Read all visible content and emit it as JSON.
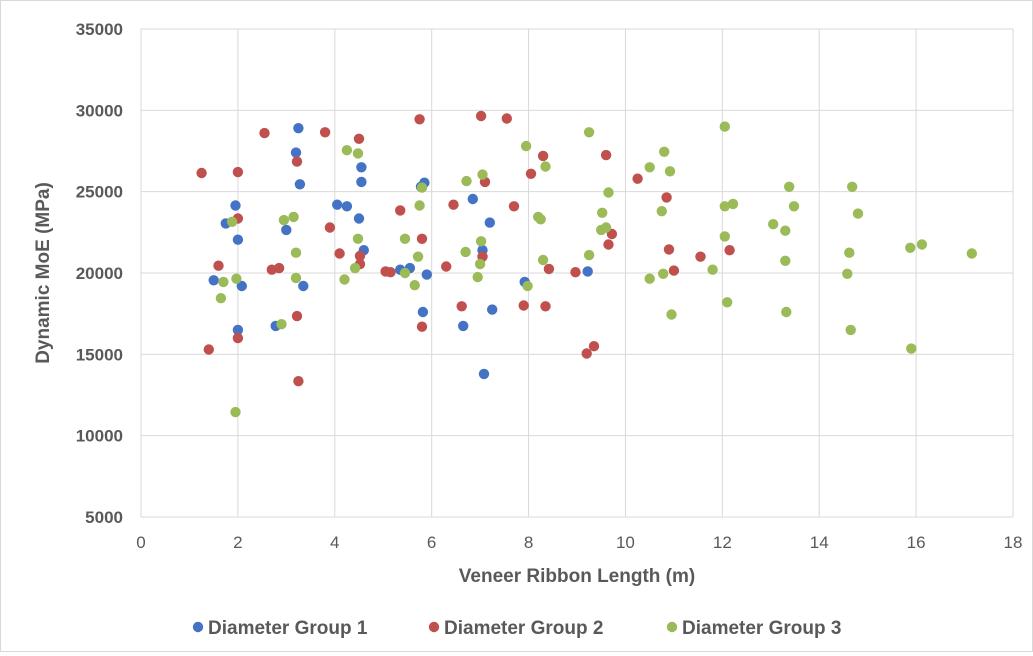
{
  "chart_data": {
    "type": "scatter",
    "title": "",
    "xlabel": "Veneer Ribbon Length (m)",
    "ylabel": "Dynamic MoE (MPa)",
    "xlim": [
      0,
      18
    ],
    "ylim": [
      5000,
      35000
    ],
    "x_ticks": [
      0,
      2,
      4,
      6,
      8,
      10,
      12,
      14,
      16,
      18
    ],
    "y_ticks": [
      5000,
      10000,
      15000,
      20000,
      25000,
      30000,
      35000
    ],
    "grid": true,
    "legend_position": "bottom",
    "series": [
      {
        "name": "Diameter Group 1",
        "color": "#4472c4",
        "points": [
          [
            3.25,
            28900
          ],
          [
            3.2,
            27400
          ],
          [
            3.28,
            25450
          ],
          [
            1.95,
            24150
          ],
          [
            1.75,
            23050
          ],
          [
            3.0,
            22650
          ],
          [
            2.0,
            22050
          ],
          [
            1.5,
            19550
          ],
          [
            2.08,
            19200
          ],
          [
            3.35,
            19200
          ],
          [
            2.0,
            16500
          ],
          [
            2.78,
            16750
          ],
          [
            4.05,
            24200
          ],
          [
            4.25,
            24100
          ],
          [
            4.5,
            23350
          ],
          [
            4.55,
            26500
          ],
          [
            4.55,
            25600
          ],
          [
            4.6,
            21400
          ],
          [
            5.35,
            20200
          ],
          [
            5.55,
            20300
          ],
          [
            5.78,
            25300
          ],
          [
            5.85,
            25550
          ],
          [
            5.9,
            19900
          ],
          [
            5.82,
            17600
          ],
          [
            6.65,
            16750
          ],
          [
            6.85,
            24550
          ],
          [
            7.05,
            21400
          ],
          [
            7.2,
            23100
          ],
          [
            7.25,
            17750
          ],
          [
            7.08,
            13800
          ],
          [
            7.92,
            19450
          ],
          [
            9.22,
            20100
          ]
        ]
      },
      {
        "name": "Diameter Group 2",
        "color": "#c0504d",
        "points": [
          [
            1.25,
            26150
          ],
          [
            1.4,
            15300
          ],
          [
            1.6,
            20450
          ],
          [
            2.0,
            26200
          ],
          [
            2.0,
            23350
          ],
          [
            2.0,
            16000
          ],
          [
            2.55,
            28600
          ],
          [
            2.7,
            20200
          ],
          [
            2.85,
            20300
          ],
          [
            3.22,
            26850
          ],
          [
            3.22,
            17350
          ],
          [
            3.25,
            13350
          ],
          [
            3.8,
            28650
          ],
          [
            3.9,
            22800
          ],
          [
            4.1,
            21200
          ],
          [
            4.5,
            28250
          ],
          [
            4.52,
            21050
          ],
          [
            4.52,
            20550
          ],
          [
            5.05,
            20100
          ],
          [
            5.15,
            20050
          ],
          [
            5.35,
            23850
          ],
          [
            5.75,
            29450
          ],
          [
            5.8,
            22100
          ],
          [
            5.8,
            16700
          ],
          [
            6.3,
            20400
          ],
          [
            6.45,
            24200
          ],
          [
            6.62,
            17950
          ],
          [
            7.02,
            29650
          ],
          [
            7.05,
            21000
          ],
          [
            7.1,
            25600
          ],
          [
            7.55,
            29500
          ],
          [
            7.7,
            24100
          ],
          [
            7.9,
            18000
          ],
          [
            8.05,
            26100
          ],
          [
            8.3,
            27200
          ],
          [
            8.35,
            17950
          ],
          [
            8.42,
            20250
          ],
          [
            8.97,
            20050
          ],
          [
            9.2,
            15050
          ],
          [
            9.35,
            15500
          ],
          [
            9.6,
            27250
          ],
          [
            9.65,
            21750
          ],
          [
            9.72,
            22400
          ],
          [
            10.25,
            25800
          ],
          [
            10.85,
            24650
          ],
          [
            10.9,
            21450
          ],
          [
            11.0,
            20150
          ],
          [
            11.55,
            21000
          ],
          [
            12.15,
            21400
          ]
        ]
      },
      {
        "name": "Diameter Group 3",
        "color": "#9bbb59",
        "points": [
          [
            1.65,
            18450
          ],
          [
            1.7,
            19450
          ],
          [
            1.88,
            23150
          ],
          [
            1.95,
            11450
          ],
          [
            1.97,
            19650
          ],
          [
            2.9,
            16850
          ],
          [
            2.95,
            23250
          ],
          [
            3.15,
            23450
          ],
          [
            3.2,
            21250
          ],
          [
            3.2,
            19700
          ],
          [
            4.25,
            27550
          ],
          [
            4.2,
            19600
          ],
          [
            4.42,
            20300
          ],
          [
            4.48,
            22100
          ],
          [
            4.48,
            27350
          ],
          [
            5.45,
            22100
          ],
          [
            5.45,
            20000
          ],
          [
            5.65,
            19250
          ],
          [
            5.72,
            21000
          ],
          [
            5.75,
            24150
          ],
          [
            5.8,
            25250
          ],
          [
            6.72,
            25650
          ],
          [
            6.7,
            21300
          ],
          [
            6.95,
            19750
          ],
          [
            7.0,
            20550
          ],
          [
            7.02,
            21950
          ],
          [
            7.05,
            26050
          ],
          [
            7.95,
            27800
          ],
          [
            7.98,
            19200
          ],
          [
            8.2,
            23450
          ],
          [
            8.25,
            23300
          ],
          [
            8.3,
            20800
          ],
          [
            8.35,
            26550
          ],
          [
            9.25,
            28650
          ],
          [
            9.25,
            21100
          ],
          [
            9.5,
            22650
          ],
          [
            9.52,
            23700
          ],
          [
            9.6,
            22800
          ],
          [
            9.65,
            24950
          ],
          [
            10.5,
            26500
          ],
          [
            10.5,
            19650
          ],
          [
            10.75,
            23800
          ],
          [
            10.8,
            27450
          ],
          [
            10.78,
            19950
          ],
          [
            10.92,
            26250
          ],
          [
            10.95,
            17450
          ],
          [
            11.8,
            20200
          ],
          [
            12.05,
            29000
          ],
          [
            12.05,
            24100
          ],
          [
            12.05,
            22250
          ],
          [
            12.1,
            18200
          ],
          [
            12.22,
            24250
          ],
          [
            13.05,
            23000
          ],
          [
            13.3,
            22600
          ],
          [
            13.3,
            20750
          ],
          [
            13.32,
            17600
          ],
          [
            13.38,
            25300
          ],
          [
            13.48,
            24100
          ],
          [
            14.58,
            19950
          ],
          [
            14.62,
            21250
          ],
          [
            14.65,
            16500
          ],
          [
            14.68,
            25300
          ],
          [
            14.8,
            23650
          ],
          [
            15.88,
            21550
          ],
          [
            15.9,
            15350
          ],
          [
            16.12,
            21750
          ],
          [
            17.15,
            21200
          ]
        ]
      }
    ]
  }
}
